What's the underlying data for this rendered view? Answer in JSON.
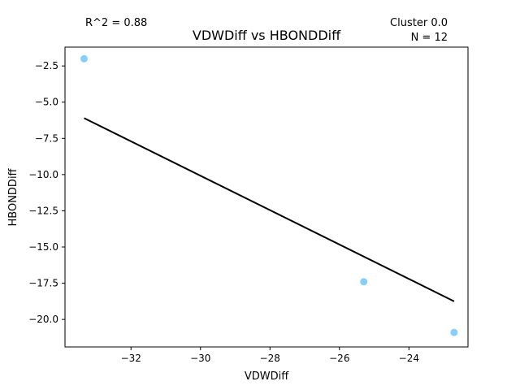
{
  "chart_data": {
    "type": "scatter",
    "title": "VDWDiff vs HBONDDiff",
    "xlabel": "VDWDiff",
    "ylabel": "HBONDDiff",
    "xlim": [
      -33.9,
      -22.3
    ],
    "ylim": [
      -21.9,
      -1.2
    ],
    "xticks": [
      -32,
      -30,
      -28,
      -26,
      -24
    ],
    "xtick_labels": [
      "−32",
      "−30",
      "−28",
      "−26",
      "−24"
    ],
    "yticks": [
      -2.5,
      -5.0,
      -7.5,
      -10.0,
      -12.5,
      -15.0,
      -17.5,
      -20.0
    ],
    "ytick_labels": [
      "−2.5",
      "−5.0",
      "−7.5",
      "−10.0",
      "−12.5",
      "−15.0",
      "−17.5",
      "−20.0"
    ],
    "points": [
      {
        "x": -33.35,
        "y": -2.0
      },
      {
        "x": -25.3,
        "y": -17.4
      },
      {
        "x": -22.7,
        "y": -20.9
      }
    ],
    "fit_line": {
      "x": [
        -33.35,
        -22.7
      ],
      "y": [
        -6.1,
        -18.75
      ]
    },
    "point_color": "#87cefa",
    "line_color": "#000000",
    "grid": false,
    "annotations": {
      "r_squared": "R^2 = 0.88",
      "cluster": "Cluster 0.0",
      "n": "N = 12"
    }
  }
}
